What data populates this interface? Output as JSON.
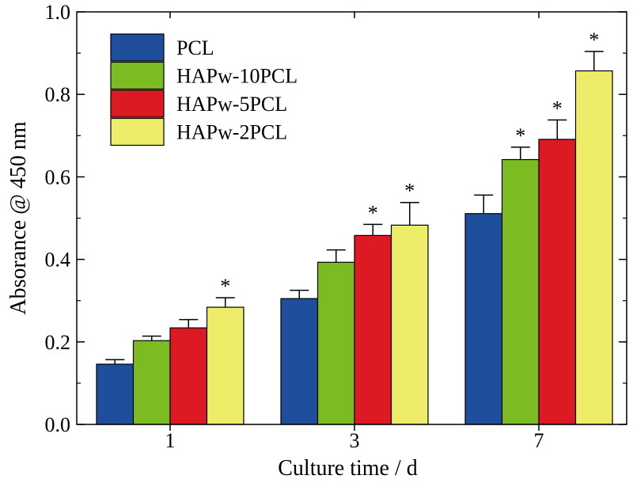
{
  "chart_data": {
    "type": "bar",
    "title": "",
    "xlabel": "Culture time / d",
    "ylabel": "Absorance @ 450 nm",
    "ylim": [
      0,
      1.0
    ],
    "yticks": [
      "0.0",
      "0.2",
      "0.4",
      "0.6",
      "0.8",
      "1.0"
    ],
    "categories": [
      "1",
      "3",
      "7"
    ],
    "grid": false,
    "legend_position": "top-left",
    "significance_marker": "*",
    "series": [
      {
        "name": "PCL",
        "color": "#1f4f9c",
        "values": [
          0.146,
          0.305,
          0.511
        ],
        "errors": [
          0.011,
          0.02,
          0.045
        ],
        "significant": [
          false,
          false,
          false
        ]
      },
      {
        "name": "HAPw-10PCL",
        "color": "#7dbb23",
        "values": [
          0.203,
          0.393,
          0.642
        ],
        "errors": [
          0.011,
          0.03,
          0.03
        ],
        "significant": [
          false,
          false,
          true
        ]
      },
      {
        "name": "HAPw-5PCL",
        "color": "#dc1a24",
        "values": [
          0.234,
          0.458,
          0.691
        ],
        "errors": [
          0.02,
          0.027,
          0.047
        ],
        "significant": [
          false,
          true,
          true
        ]
      },
      {
        "name": "HAPw-2PCL",
        "color": "#eded6a",
        "values": [
          0.284,
          0.483,
          0.857
        ],
        "errors": [
          0.023,
          0.055,
          0.047
        ],
        "significant": [
          true,
          true,
          true
        ]
      }
    ]
  }
}
